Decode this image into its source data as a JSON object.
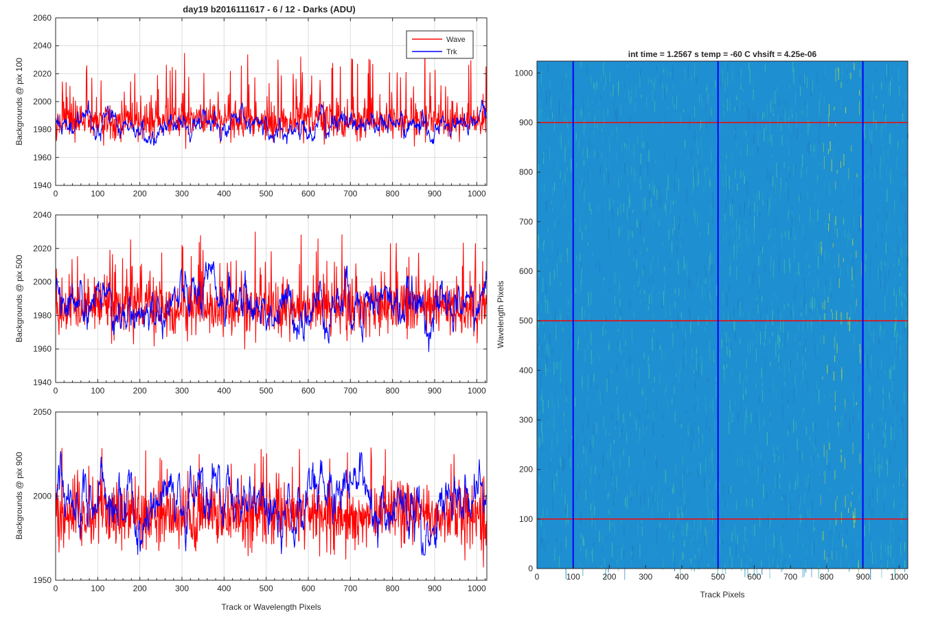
{
  "figure_title": "day19 b2016111617 - 6 / 12 - Darks (ADU)",
  "image_title": "int time = 1.2567 s    temp = -60 C    vhsift = 4.25e-06",
  "colors": {
    "wave": "#ff0000",
    "trk": "#0000ff",
    "axis": "#262626",
    "grid": "#dcdcdc",
    "map_base": "#1e8fd0"
  },
  "legend": {
    "location": "top-right",
    "entries": [
      "Wave",
      "Trk"
    ]
  },
  "chart_data": [
    {
      "type": "line",
      "ylabel": "Backgrounds @ pix 100",
      "xlabel": "",
      "xlim": [
        0,
        1024
      ],
      "ylim": [
        1940,
        2060
      ],
      "xticks": [
        0,
        100,
        200,
        300,
        400,
        500,
        600,
        700,
        800,
        900,
        1000
      ],
      "yticks": [
        1940,
        1960,
        1980,
        2000,
        2020,
        2040,
        2060
      ],
      "grid": true,
      "legend": true,
      "series": [
        {
          "name": "Wave",
          "color": "#ff0000",
          "mean": 1986,
          "sd": 6,
          "spike_rate": 0.12,
          "spike_max": 55,
          "min": 1956,
          "max": 2055
        },
        {
          "name": "Trk",
          "color": "#0000ff",
          "mean": 1983,
          "sd": 5,
          "spike_rate": 0.0,
          "spike_max": 0,
          "min": 1957,
          "max": 2005
        }
      ]
    },
    {
      "type": "line",
      "ylabel": "Backgrounds @ pix 500",
      "xlabel": "",
      "xlim": [
        0,
        1024
      ],
      "ylim": [
        1940,
        2040
      ],
      "xticks": [
        0,
        100,
        200,
        300,
        400,
        500,
        600,
        700,
        800,
        900,
        1000
      ],
      "yticks": [
        1940,
        1960,
        1980,
        2000,
        2020,
        2040
      ],
      "grid": true,
      "legend": false,
      "series": [
        {
          "name": "Wave",
          "color": "#ff0000",
          "mean": 1984,
          "sd": 8,
          "spike_rate": 0.1,
          "spike_max": 45,
          "min": 1958,
          "max": 2030
        },
        {
          "name": "Trk",
          "color": "#0000ff",
          "mean": 1987,
          "sd": 8,
          "spike_rate": 0.0,
          "spike_max": 0,
          "min": 1955,
          "max": 2032
        }
      ]
    },
    {
      "type": "line",
      "ylabel": "Backgrounds @ pix 900",
      "xlabel": "Track or Wavelength Pixels",
      "xlim": [
        0,
        1024
      ],
      "ylim": [
        1950,
        2050
      ],
      "xticks": [
        0,
        100,
        200,
        300,
        400,
        500,
        600,
        700,
        800,
        900,
        1000
      ],
      "yticks": [
        1950,
        2000,
        2050
      ],
      "grid": true,
      "legend": false,
      "series": [
        {
          "name": "Wave",
          "color": "#ff0000",
          "mean": 1988,
          "sd": 9,
          "spike_rate": 0.08,
          "spike_max": 40,
          "min": 1952,
          "max": 2046
        },
        {
          "name": "Trk",
          "color": "#0000ff",
          "mean": 1998,
          "sd": 10,
          "spike_rate": 0.0,
          "spike_max": 0,
          "min": 1965,
          "max": 2040
        }
      ]
    },
    {
      "type": "heatmap",
      "title": "int time = 1.2567 s    temp = -60 C    vhsift = 4.25e-06",
      "xlabel": "Track Pixels",
      "ylabel": "Wavelength Pixels",
      "xlim": [
        0,
        1024
      ],
      "ylim": [
        0,
        1024
      ],
      "xticks": [
        0,
        100,
        200,
        300,
        400,
        500,
        600,
        700,
        800,
        900,
        1000
      ],
      "yticks": [
        0,
        100,
        200,
        300,
        400,
        500,
        600,
        700,
        800,
        900,
        1000
      ],
      "colormap": "parula",
      "vertical_markers": {
        "color": "#0000ff",
        "values": [
          100,
          500,
          900
        ]
      },
      "horizontal_markers": {
        "color": "#ff0000",
        "values": [
          100,
          500,
          900
        ]
      },
      "bright_region_x": [
        780,
        900
      ]
    }
  ]
}
